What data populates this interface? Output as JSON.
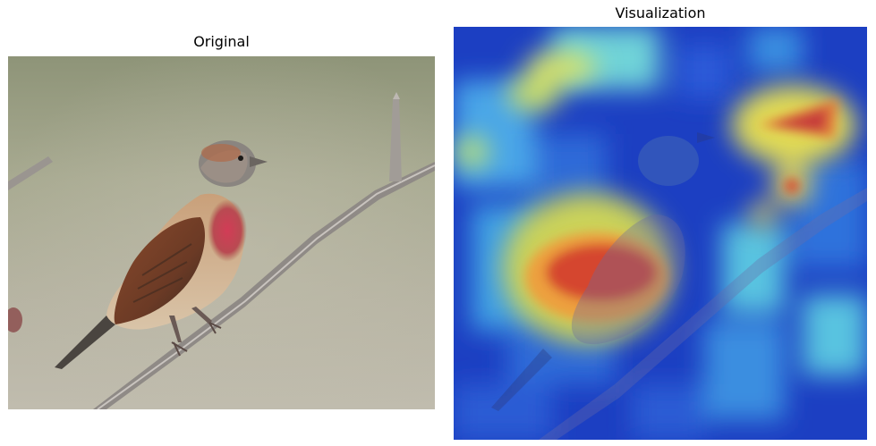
{
  "panels": {
    "original": {
      "title": "Original"
    },
    "visualization": {
      "title": "Visualization"
    }
  }
}
